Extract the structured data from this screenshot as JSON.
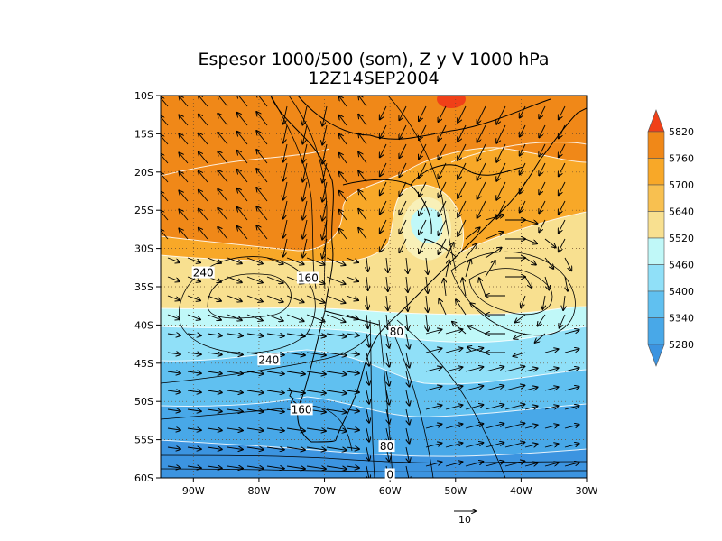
{
  "title": {
    "line1": "Espesor 1000/500 (som), Z y V 1000 hPa",
    "line2": "12Z14SEP2004"
  },
  "axes": {
    "lat_labels": [
      "10S",
      "15S",
      "20S",
      "25S",
      "30S",
      "35S",
      "40S",
      "45S",
      "50S",
      "55S",
      "60S"
    ],
    "lat_values": [
      -10,
      -15,
      -20,
      -25,
      -30,
      -35,
      -40,
      -45,
      -50,
      -55,
      -60
    ],
    "lon_labels": [
      "90W",
      "80W",
      "70W",
      "60W",
      "50W",
      "40W",
      "30W"
    ],
    "lon_values": [
      -90,
      -80,
      -70,
      -60,
      -50,
      -40,
      -30
    ],
    "lon_range": [
      -95,
      -30
    ],
    "lat_range": [
      -10,
      -60
    ]
  },
  "colorbar": {
    "levels": [
      "5820",
      "5760",
      "5700",
      "5640",
      "5520",
      "5460",
      "5400",
      "5340",
      "5280"
    ],
    "colors": [
      "#f04018",
      "#f08818",
      "#f8a828",
      "#f8c050",
      "#f8e090",
      "#c0f8f8",
      "#90e0f8",
      "#60c0f0",
      "#48a8e8",
      "#3c94e0"
    ]
  },
  "contour_labels": [
    {
      "text": "240",
      "lon": -88.5,
      "lat": -33.3
    },
    {
      "text": "160",
      "lon": -72.5,
      "lat": -34.0
    },
    {
      "text": "80",
      "lon": -59.0,
      "lat": -41.0
    },
    {
      "text": "240",
      "lon": -78.5,
      "lat": -44.7
    },
    {
      "text": "160",
      "lon": -73.5,
      "lat": -51.2
    },
    {
      "text": "80",
      "lon": -60.5,
      "lat": -56.0
    },
    {
      "text": "0",
      "lon": -60.0,
      "lat": -59.7
    }
  ],
  "reference_vector": {
    "label": "10"
  }
}
